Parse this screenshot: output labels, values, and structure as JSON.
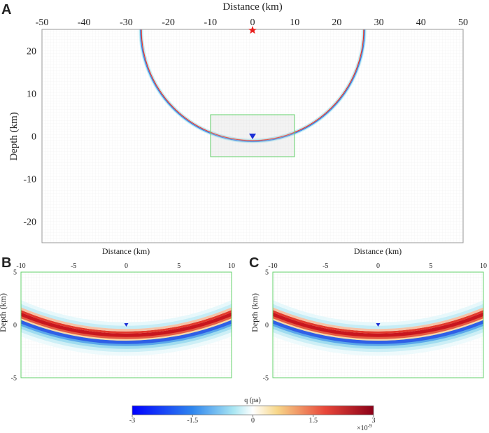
{
  "chart_data": [
    {
      "panel": "A",
      "type": "heatmap",
      "xlabel": "Distance (km)",
      "ylabel": "Depth (km)",
      "xlim": [
        -50,
        50
      ],
      "ylim": [
        -25,
        25
      ],
      "xticks": [
        "-50",
        "-40",
        "-30",
        "-20",
        "-10",
        "0",
        "10",
        "20",
        "30",
        "40",
        "50"
      ],
      "yticks": [
        "20",
        "10",
        "0",
        "-10",
        "-20"
      ],
      "wavefront": {
        "center": [
          0,
          25
        ],
        "radius_km": 26.3,
        "polarity": "positive inner red, negative outer blue"
      },
      "source_marker": {
        "x": 0,
        "y": 25,
        "symbol": "star",
        "color": "#e8201e"
      },
      "receiver_marker": {
        "x": 0,
        "y": 0,
        "symbol": "triangle-down",
        "color": "#1b2fd6"
      },
      "zoom_box": {
        "x": [
          -10,
          10
        ],
        "y": [
          -5,
          5
        ],
        "color": "#63d06b"
      }
    },
    {
      "panel": "B",
      "type": "heatmap",
      "xlabel": "Distance (km)",
      "ylabel": "Depth (km)",
      "xlim": [
        -10,
        10
      ],
      "ylim": [
        -5,
        5
      ],
      "xticks": [
        "-10",
        "-5",
        "0",
        "5",
        "10"
      ],
      "yticks": [
        "5",
        "0",
        "-5"
      ],
      "receiver_marker": {
        "x": 0,
        "y": 0,
        "symbol": "triangle-down",
        "color": "#1b2fd6"
      }
    },
    {
      "panel": "C",
      "type": "heatmap",
      "xlabel": "Distance (km)",
      "ylabel": "Depth (km)",
      "xlim": [
        -10,
        10
      ],
      "ylim": [
        -5,
        5
      ],
      "xticks": [
        "-10",
        "-5",
        "0",
        "5",
        "10"
      ],
      "yticks": [
        "5",
        "0",
        "-5"
      ],
      "receiver_marker": {
        "x": 0,
        "y": 0,
        "symbol": "triangle-down",
        "color": "#1b2fd6"
      }
    }
  ],
  "colorbar": {
    "title": "q (pa)",
    "range": [
      -3,
      3
    ],
    "ticks": [
      "-3",
      "-1.5",
      "0",
      "1.5",
      "3"
    ],
    "exponent_label": "×10",
    "exponent_power": "-9",
    "colors": [
      "#0000ff",
      "#2f86ee",
      "#a9e6f2",
      "#ffffff",
      "#f7d78a",
      "#e8473a",
      "#8b0018"
    ]
  },
  "labels": {
    "A": "A",
    "B": "B",
    "C": "C"
  },
  "colors": {
    "frame": "#9a9a9a",
    "zoom_frame": "#63d06b",
    "grid": "#e9e9e9"
  }
}
